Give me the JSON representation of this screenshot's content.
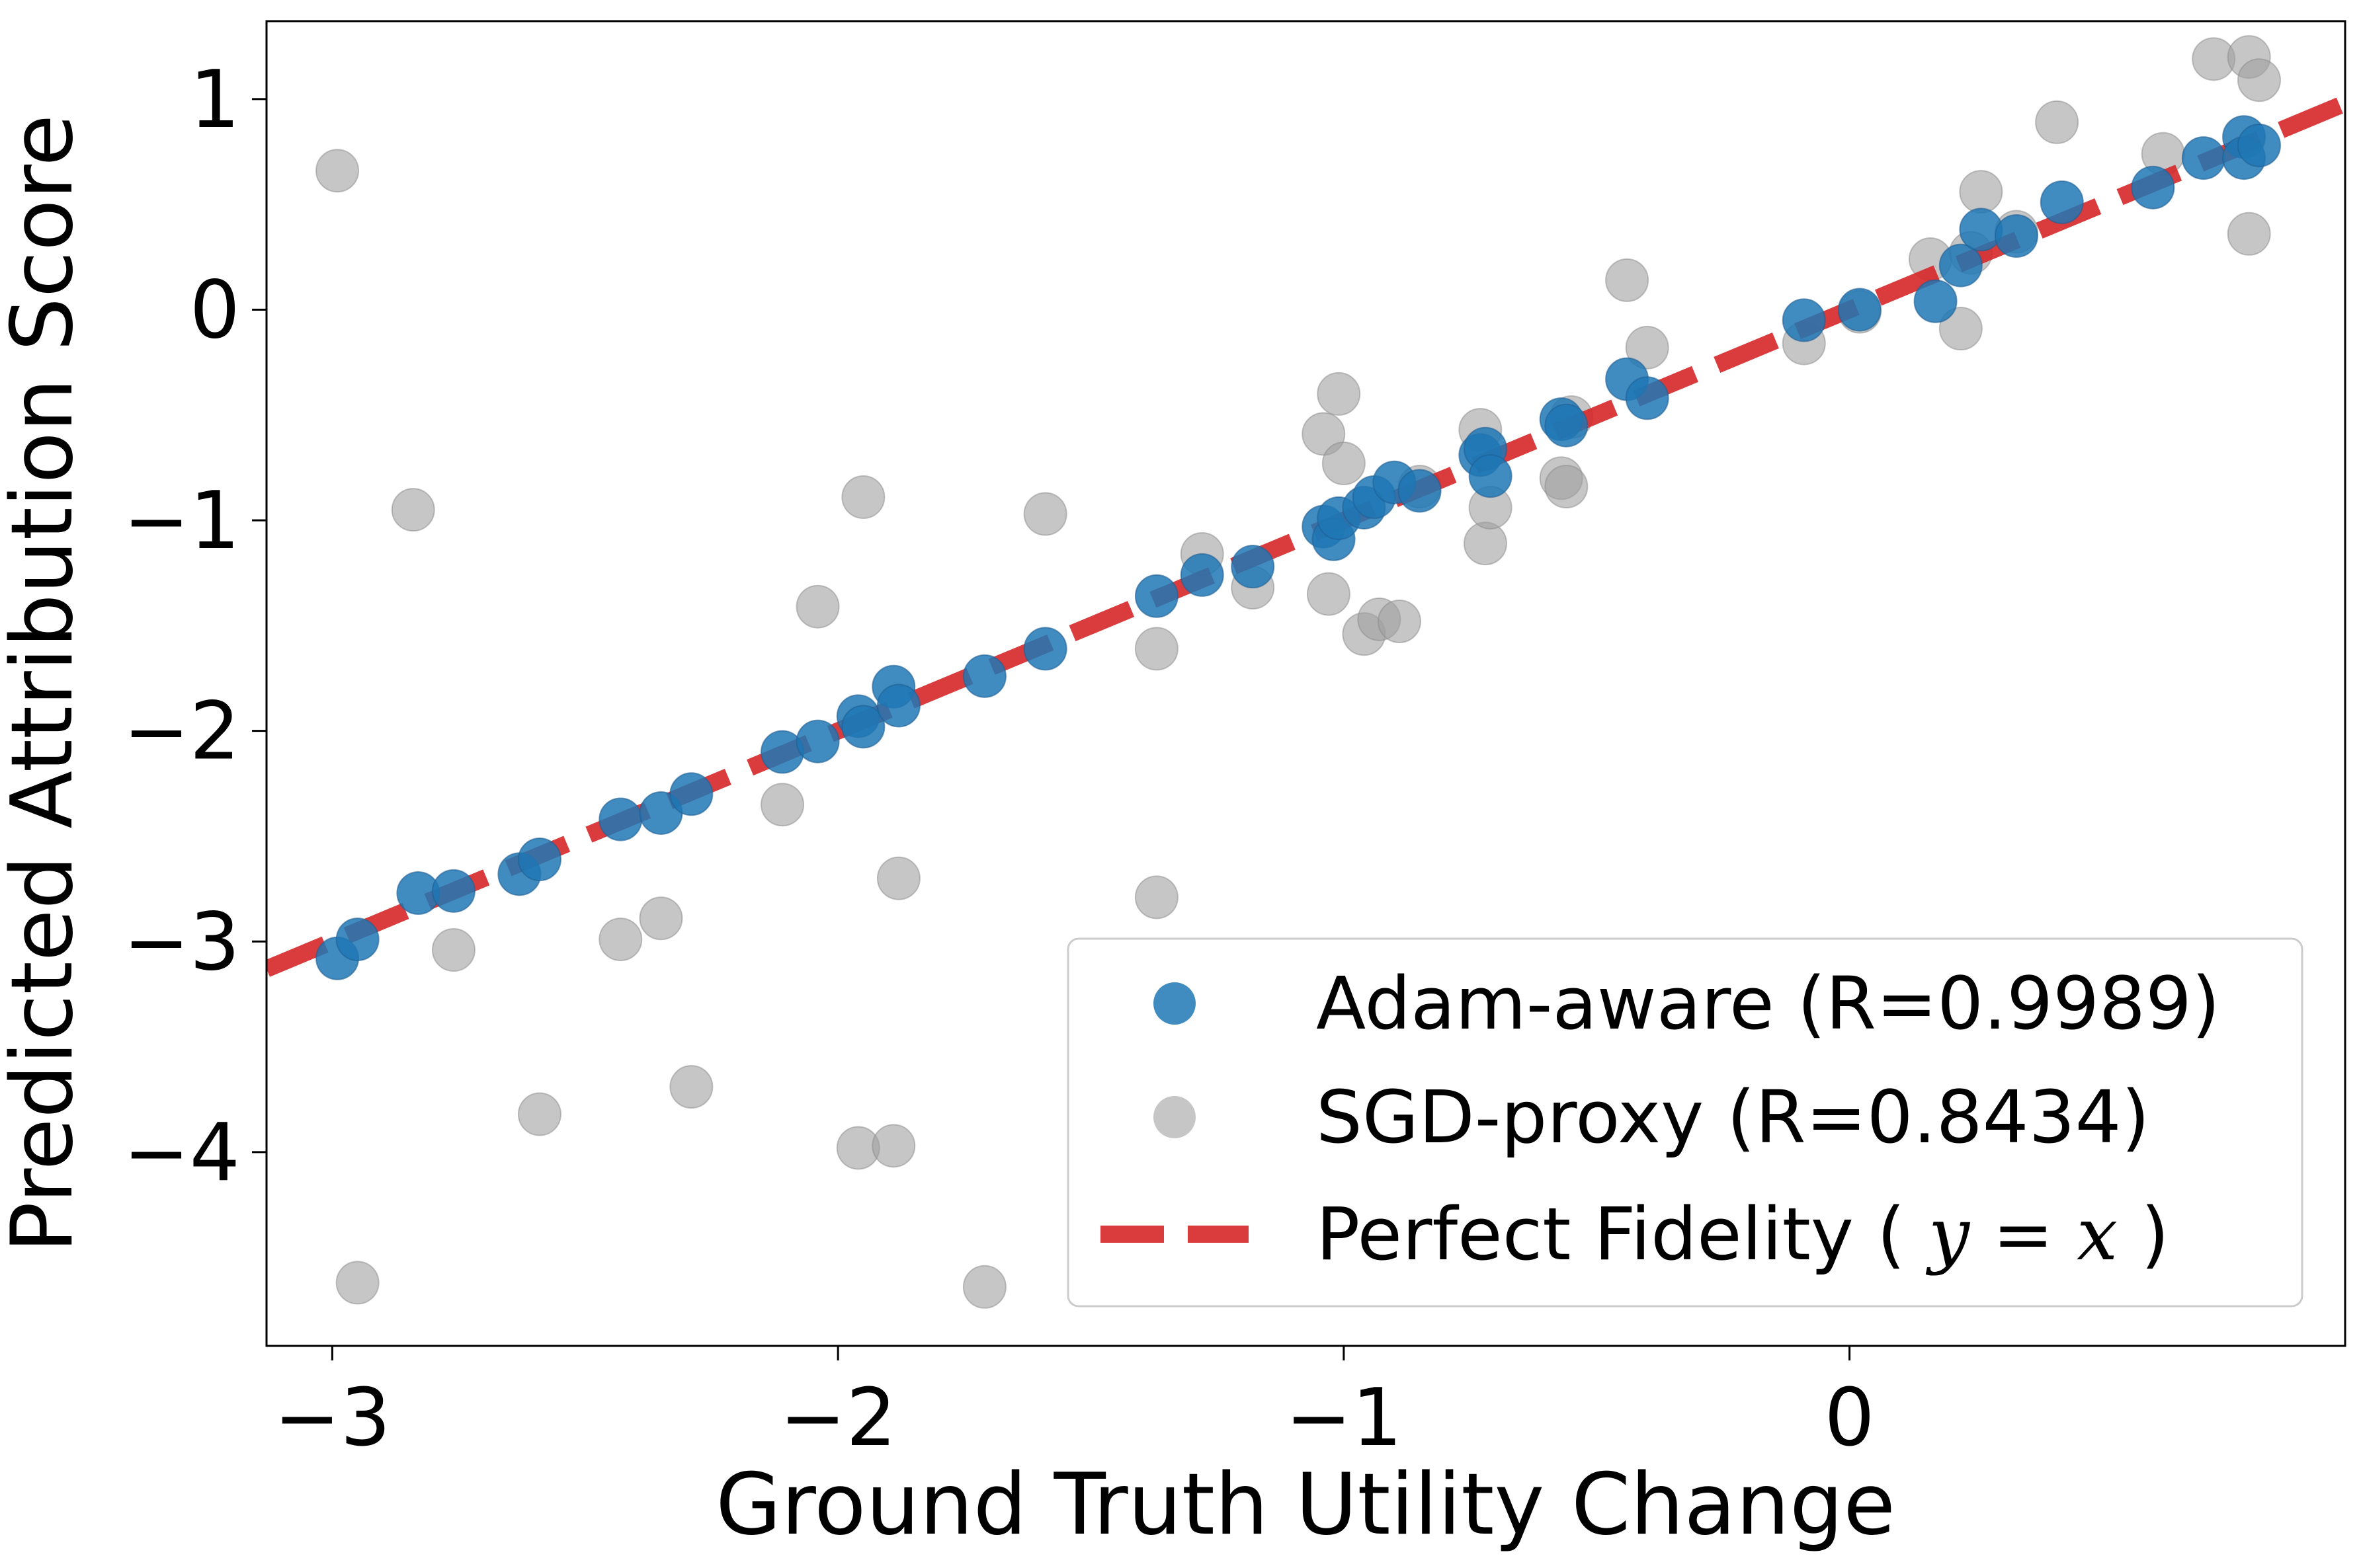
{
  "chart_data": {
    "type": "scatter",
    "xlabel": "Ground Truth Utility Change",
    "ylabel": "Predicted Attribution Score",
    "xlim": [
      -3.13,
      0.98
    ],
    "ylim": [
      -4.92,
      1.37
    ],
    "x_ticks": [
      -3,
      -2,
      -1,
      0
    ],
    "x_tick_labels": [
      "−3",
      "−2",
      "−1",
      "0"
    ],
    "y_ticks": [
      -4,
      -3,
      -2,
      -1,
      0,
      1
    ],
    "y_tick_labels": [
      "−4",
      "−3",
      "−2",
      "−1",
      "0",
      "1"
    ],
    "grid": false,
    "legend_position": "lower-right",
    "series": [
      {
        "name": "Adam-aware (R=0.9989)",
        "color": "#1f77b4",
        "points": [
          [
            -2.99,
            -3.08
          ],
          [
            -2.95,
            -2.99
          ],
          [
            -2.83,
            -2.77
          ],
          [
            -2.76,
            -2.76
          ],
          [
            -2.63,
            -2.68
          ],
          [
            -2.59,
            -2.61
          ],
          [
            -2.43,
            -2.42
          ],
          [
            -2.35,
            -2.39
          ],
          [
            -2.29,
            -2.3
          ],
          [
            -2.11,
            -2.1
          ],
          [
            -2.04,
            -2.05
          ],
          [
            -1.96,
            -1.93
          ],
          [
            -1.95,
            -1.98
          ],
          [
            -1.89,
            -1.79
          ],
          [
            -1.88,
            -1.88
          ],
          [
            -1.71,
            -1.74
          ],
          [
            -1.59,
            -1.61
          ],
          [
            -1.37,
            -1.36
          ],
          [
            -1.28,
            -1.26
          ],
          [
            -1.18,
            -1.22
          ],
          [
            -1.04,
            -1.03
          ],
          [
            -1.02,
            -1.09
          ],
          [
            -1.01,
            -0.99
          ],
          [
            -0.96,
            -0.94
          ],
          [
            -0.94,
            -0.89
          ],
          [
            -0.9,
            -0.82
          ],
          [
            -0.85,
            -0.86
          ],
          [
            -0.73,
            -0.69
          ],
          [
            -0.72,
            -0.66
          ],
          [
            -0.71,
            -0.79
          ],
          [
            -0.57,
            -0.52
          ],
          [
            -0.56,
            -0.55
          ],
          [
            -0.44,
            -0.33
          ],
          [
            -0.4,
            -0.42
          ],
          [
            -0.09,
            -0.05
          ],
          [
            0.02,
            0.0
          ],
          [
            0.17,
            0.04
          ],
          [
            0.22,
            0.21
          ],
          [
            0.26,
            0.38
          ],
          [
            0.33,
            0.35
          ],
          [
            0.42,
            0.51
          ],
          [
            0.6,
            0.58
          ],
          [
            0.7,
            0.72
          ],
          [
            0.78,
            0.82
          ],
          [
            0.78,
            0.72
          ],
          [
            0.81,
            0.78
          ]
        ]
      },
      {
        "name": "SGD-proxy (R=0.8434)",
        "color": "#a0a0a0",
        "points": [
          [
            -2.99,
            0.66
          ],
          [
            -2.84,
            -0.95
          ],
          [
            -2.95,
            -4.62
          ],
          [
            -2.76,
            -3.04
          ],
          [
            -2.59,
            -3.82
          ],
          [
            -2.43,
            -2.99
          ],
          [
            -2.35,
            -2.89
          ],
          [
            -2.29,
            -3.69
          ],
          [
            -2.11,
            -2.35
          ],
          [
            -2.04,
            -1.41
          ],
          [
            -1.96,
            -3.98
          ],
          [
            -1.95,
            -0.89
          ],
          [
            -1.89,
            -3.97
          ],
          [
            -1.88,
            -2.7
          ],
          [
            -1.71,
            -4.64
          ],
          [
            -1.59,
            -0.97
          ],
          [
            -1.37,
            -1.61
          ],
          [
            -1.37,
            -2.79
          ],
          [
            -1.28,
            -1.16
          ],
          [
            -1.18,
            -1.32
          ],
          [
            -1.04,
            -0.59
          ],
          [
            -1.03,
            -1.35
          ],
          [
            -1.01,
            -0.4
          ],
          [
            -1.0,
            -0.73
          ],
          [
            -0.96,
            -1.54
          ],
          [
            -0.93,
            -1.47
          ],
          [
            -0.89,
            -1.48
          ],
          [
            -0.85,
            -0.84
          ],
          [
            -0.73,
            -0.57
          ],
          [
            -0.72,
            -1.11
          ],
          [
            -0.71,
            -0.94
          ],
          [
            -0.57,
            -0.8
          ],
          [
            -0.56,
            -0.84
          ],
          [
            -0.55,
            -0.51
          ],
          [
            -0.44,
            0.14
          ],
          [
            -0.4,
            -0.18
          ],
          [
            -0.09,
            -0.16
          ],
          [
            0.02,
            -0.01
          ],
          [
            0.16,
            0.24
          ],
          [
            0.22,
            -0.09
          ],
          [
            0.24,
            0.27
          ],
          [
            0.26,
            0.56
          ],
          [
            0.33,
            0.37
          ],
          [
            0.41,
            0.89
          ],
          [
            0.62,
            0.74
          ],
          [
            0.72,
            1.19
          ],
          [
            0.79,
            1.2
          ],
          [
            0.81,
            1.09
          ],
          [
            0.79,
            0.36
          ]
        ]
      },
      {
        "name": "Perfect Fidelity",
        "name_math": "y = x",
        "color": "#d62728",
        "line": "dashed",
        "equation": "y = x"
      }
    ]
  }
}
